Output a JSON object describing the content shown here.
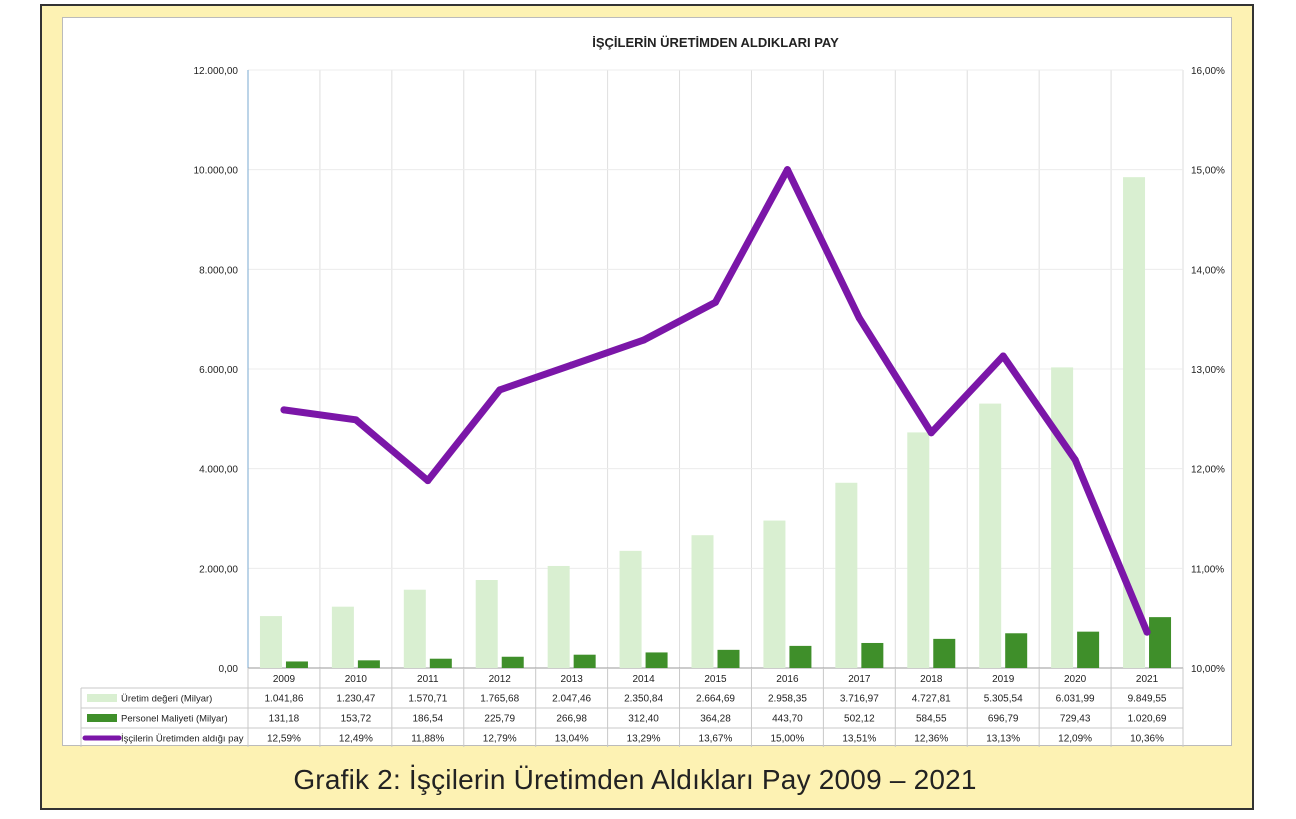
{
  "caption": "Grafik 2: İşçilerin Üretimden Aldıkları Pay 2009 – 2021",
  "chart_data": {
    "type": "bar",
    "title": "İŞÇİLERİN ÜRETİMDEN ALDIKLARI PAY",
    "categories": [
      "2009",
      "2010",
      "2011",
      "2012",
      "2013",
      "2014",
      "2015",
      "2016",
      "2017",
      "2018",
      "2019",
      "2020",
      "2021"
    ],
    "ylim": [
      0,
      12000
    ],
    "yticks": [
      "0,00",
      "2.000,00",
      "4.000,00",
      "6.000,00",
      "8.000,00",
      "10.000,00",
      "12.000,00"
    ],
    "y2lim": [
      10,
      16
    ],
    "y2ticks": [
      "10,00%",
      "11,00%",
      "12,00%",
      "13,00%",
      "14,00%",
      "15,00%",
      "16,00%"
    ],
    "grid": true,
    "legend": "data-table",
    "series": [
      {
        "name": "Üretim değeri (Milyar)",
        "kind": "bar",
        "axis": "left",
        "color": "#d9efd1",
        "values": [
          1041.86,
          1230.47,
          1570.71,
          1765.68,
          2047.46,
          2350.84,
          2664.69,
          2958.35,
          3716.97,
          4727.81,
          5305.54,
          6031.99,
          9849.55
        ],
        "labels": [
          "1.041,86",
          "1.230,47",
          "1.570,71",
          "1.765,68",
          "2.047,46",
          "2.350,84",
          "2.664,69",
          "2.958,35",
          "3.716,97",
          "4.727,81",
          "5.305,54",
          "6.031,99",
          "9.849,55"
        ]
      },
      {
        "name": "Personel Maliyeti (Milyar)",
        "kind": "bar",
        "axis": "left",
        "color": "#3f8f2a",
        "values": [
          131.18,
          153.72,
          186.54,
          225.79,
          266.98,
          312.4,
          364.28,
          443.7,
          502.12,
          584.55,
          696.79,
          729.43,
          1020.69
        ],
        "labels": [
          "131,18",
          "153,72",
          "186,54",
          "225,79",
          "266,98",
          "312,40",
          "364,28",
          "443,70",
          "502,12",
          "584,55",
          "696,79",
          "729,43",
          "1.020,69"
        ]
      },
      {
        "name": "İşçilerin Üretimden aldığı pay",
        "kind": "line",
        "axis": "right",
        "color": "#7b16a8",
        "values": [
          12.59,
          12.49,
          11.88,
          12.79,
          13.04,
          13.29,
          13.67,
          15.0,
          13.51,
          12.36,
          13.13,
          12.09,
          10.36
        ],
        "labels": [
          "12,59%",
          "12,49%",
          "11,88%",
          "12,79%",
          "13,04%",
          "13,29%",
          "13,67%",
          "15,00%",
          "13,51%",
          "12,36%",
          "13,13%",
          "12,09%",
          "10,36%"
        ]
      }
    ]
  }
}
